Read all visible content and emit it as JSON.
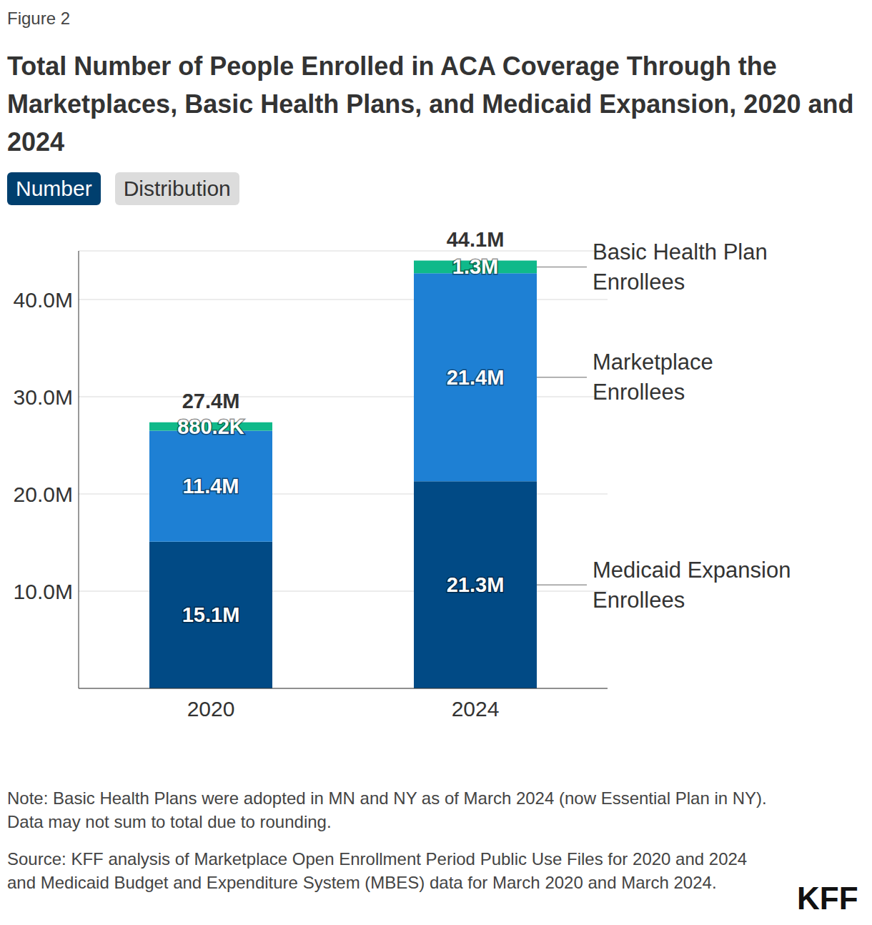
{
  "chart_data": {
    "type": "bar",
    "figure_label": "Figure 2",
    "title": "Total Number of People Enrolled in ACA Coverage Through the Marketplaces, Basic Health Plans, and Medicaid Expansion, 2020 and 2024",
    "toggle": [
      "Number",
      "Distribution"
    ],
    "categories": [
      "2020",
      "2024"
    ],
    "series": [
      {
        "name": "Medicaid Expansion Enrollees",
        "color": "#014a85",
        "values": [
          15.1,
          21.3
        ],
        "value_labels": [
          "15.1M",
          "21.3M"
        ]
      },
      {
        "name": "Marketplace Enrollees",
        "color": "#1e80d4",
        "values": [
          11.4,
          21.4
        ],
        "value_labels": [
          "11.4M",
          "21.4M"
        ]
      },
      {
        "name": "Basic Health Plan Enrollees",
        "color": "#0fb98a",
        "values": [
          0.8802,
          1.3
        ],
        "value_labels": [
          "880.2K",
          "1.3M"
        ]
      }
    ],
    "total_values": [
      27.4,
      44.1
    ],
    "total_labels": [
      "27.4M",
      "44.1M"
    ],
    "stacked": true,
    "data_labels": true,
    "ylim": [
      0,
      45
    ],
    "yticks": [
      {
        "value": 10,
        "label": "10.0M"
      },
      {
        "value": 20,
        "label": "20.0M"
      },
      {
        "value": 30,
        "label": "30.0M"
      },
      {
        "value": 40,
        "label": "40.0M"
      }
    ],
    "grid": true,
    "note": "Note: Basic Health Plans were adopted in MN and NY as of March 2024 (now Essential Plan in NY). Data may not sum to total due to rounding.",
    "source": "Source: KFF analysis of Marketplace Open Enrollment Period Public Use Files for 2020 and 2024 and Medicaid Budget and Expenditure System (MBES) data for March 2020 and March 2024.",
    "brand": "KFF"
  }
}
